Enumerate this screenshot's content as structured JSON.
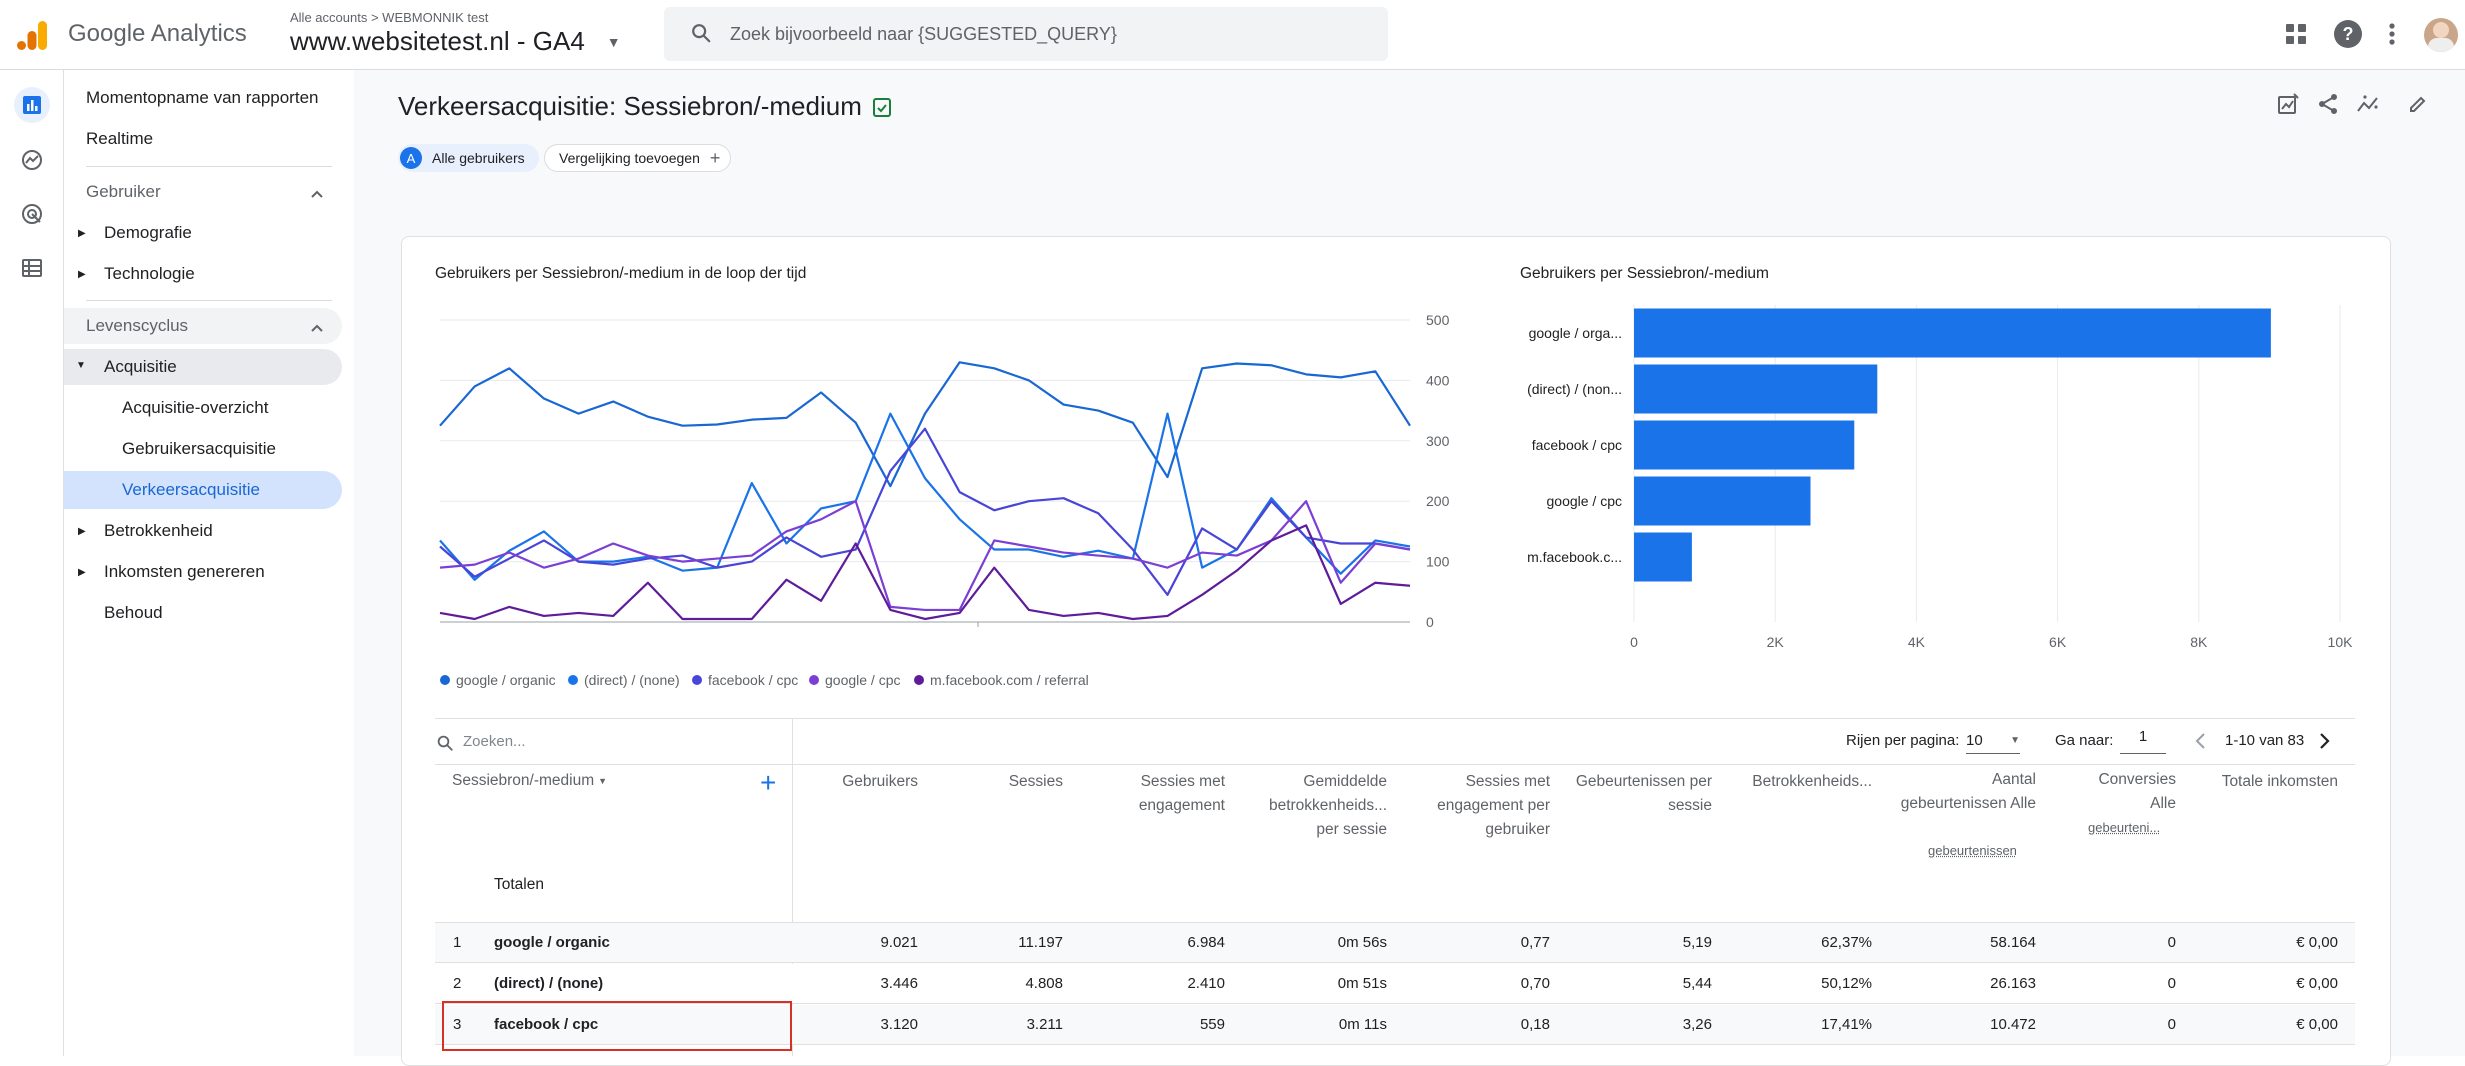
{
  "header": {
    "brand": "Google Analytics",
    "breadcrumb_all": "Alle accounts",
    "breadcrumb_sep": ">",
    "breadcrumb_account": "WEBMONNIK test",
    "property": "www.websitetest.nl - GA4",
    "search_placeholder": "Zoek bijvoorbeeld naar {SUGGESTED_QUERY}"
  },
  "nav": {
    "snapshot": "Momentopname van rapporten",
    "realtime": "Realtime",
    "user_section": "Gebruiker",
    "demografie": "Demografie",
    "technologie": "Technologie",
    "lifecycle_section": "Levenscyclus",
    "acquisitie": "Acquisitie",
    "acq_overview": "Acquisitie-overzicht",
    "user_acq": "Gebruikersacquisitie",
    "traffic_acq": "Verkeersacquisitie",
    "betrokkenheid": "Betrokkenheid",
    "inkomsten": "Inkomsten genereren",
    "behoud": "Behoud"
  },
  "page": {
    "title": "Verkeersacquisitie: Sessiebron/-medium",
    "segment_letter": "A",
    "segment_label": "Alle gebruikers",
    "compare_label": "Vergelijking toevoegen"
  },
  "line_chart_title": "Gebruikers per Sessiebron/-medium in de loop der tijd",
  "bar_chart_title": "Gebruikers per Sessiebron/-medium",
  "colors": {
    "google_organic": "#1967d2",
    "direct_none": "#1a73e8",
    "facebook_cpc": "#4945d6",
    "google_cpc": "#7b3fd4",
    "m_facebook_referral": "#5e1b9a",
    "bar": "#1a73e8",
    "accent": "#1a73e8",
    "highlight_border": "#d93025"
  },
  "chart_data": [
    {
      "type": "line",
      "ylim": [
        0,
        500
      ],
      "y_ticks": [
        "500",
        "400",
        "300",
        "200",
        "100",
        "0"
      ],
      "x": [
        1,
        2,
        3,
        4,
        5,
        6,
        7,
        8,
        9,
        10,
        11,
        12,
        13,
        14,
        15,
        16,
        17,
        18,
        19,
        20,
        21,
        22,
        23,
        24,
        25,
        26,
        27,
        28,
        29
      ],
      "series": [
        {
          "name": "google / organic",
          "color_key": "google_organic",
          "values": [
            325,
            390,
            420,
            370,
            345,
            365,
            340,
            325,
            327,
            335,
            338,
            380,
            330,
            225,
            345,
            430,
            420,
            400,
            360,
            350,
            330,
            240,
            420,
            428,
            425,
            410,
            405,
            415,
            325
          ]
        },
        {
          "name": "(direct) / (none)",
          "color_key": "direct_none",
          "values": [
            135,
            70,
            118,
            150,
            100,
            100,
            108,
            85,
            90,
            230,
            130,
            188,
            200,
            345,
            238,
            170,
            120,
            120,
            108,
            118,
            105,
            345,
            90,
            120,
            205,
            140,
            80,
            135,
            125
          ]
        },
        {
          "name": "facebook / cpc",
          "color_key": "facebook_cpc",
          "values": [
            125,
            75,
            105,
            135,
            100,
            95,
            105,
            110,
            90,
            100,
            140,
            108,
            120,
            250,
            320,
            215,
            185,
            200,
            205,
            180,
            120,
            45,
            155,
            120,
            200,
            140,
            130,
            130,
            120
          ]
        },
        {
          "name": "google / cpc",
          "color_key": "google_cpc",
          "values": [
            90,
            95,
            115,
            90,
            105,
            130,
            110,
            100,
            105,
            110,
            150,
            170,
            200,
            25,
            20,
            20,
            135,
            125,
            115,
            110,
            105,
            90,
            115,
            110,
            135,
            200,
            65,
            130,
            120
          ]
        },
        {
          "name": "m.facebook.com / referral",
          "color_key": "m_facebook_referral",
          "values": [
            15,
            5,
            25,
            10,
            15,
            10,
            65,
            5,
            5,
            5,
            70,
            35,
            130,
            20,
            5,
            15,
            90,
            20,
            10,
            15,
            5,
            10,
            45,
            85,
            135,
            160,
            30,
            65,
            60
          ]
        }
      ]
    },
    {
      "type": "bar",
      "orientation": "horizontal",
      "categories": [
        "google / orga...",
        "(direct) / (non...",
        "facebook / cpc",
        "google / cpc",
        "m.facebook.c..."
      ],
      "values": [
        9021,
        3446,
        3120,
        2500,
        820
      ],
      "xlim": [
        0,
        10000
      ],
      "x_ticks": [
        "0",
        "2K",
        "4K",
        "6K",
        "8K",
        "10K"
      ]
    }
  ],
  "legend": [
    "google / organic",
    "(direct) / (none)",
    "facebook / cpc",
    "google / cpc",
    "m.facebook.com / referral"
  ],
  "table": {
    "search_placeholder": "Zoeken...",
    "rows_per_page_label": "Rijen per pagina:",
    "rows_per_page_value": "10",
    "goto_label": "Ga naar:",
    "goto_value": "1",
    "range": "1-10 van 83",
    "dim_header": "Sessiebron/-medium",
    "totals_label": "Totalen",
    "col_users": "Gebruikers",
    "col_sessions": "Sessies",
    "col_eng_sessions": "Sessies met engagement",
    "col_avg_eng_time": "Gemiddelde betrokkenheids... per sessie",
    "col_eng_per_user": "Sessies met engagement per gebruiker",
    "col_events_per_session": "Gebeurtenissen per sessie",
    "col_eng_rate": "Betrokkenheids...",
    "col_event_count": "Aantal gebeurtenissen Alle",
    "col_event_count_sub": "gebeurtenissen",
    "col_conversions": "Conversies Alle",
    "col_conversions_sub": "gebeurteni...",
    "col_revenue": "Totale inkomsten",
    "rows": [
      {
        "n": "1",
        "name": "google / organic",
        "users": "9.021",
        "sessions": "11.197",
        "eng": "6.984",
        "time": "0m 56s",
        "epu": "0,77",
        "eps": "5,19",
        "rate": "62,37%",
        "events": "58.164",
        "conv": "0",
        "rev": "€ 0,00"
      },
      {
        "n": "2",
        "name": "(direct) / (none)",
        "users": "3.446",
        "sessions": "4.808",
        "eng": "2.410",
        "time": "0m 51s",
        "epu": "0,70",
        "eps": "5,44",
        "rate": "50,12%",
        "events": "26.163",
        "conv": "0",
        "rev": "€ 0,00"
      },
      {
        "n": "3",
        "name": "facebook / cpc",
        "users": "3.120",
        "sessions": "3.211",
        "eng": "559",
        "time": "0m 11s",
        "epu": "0,18",
        "eps": "3,26",
        "rate": "17,41%",
        "events": "10.472",
        "conv": "0",
        "rev": "€ 0,00"
      }
    ]
  }
}
